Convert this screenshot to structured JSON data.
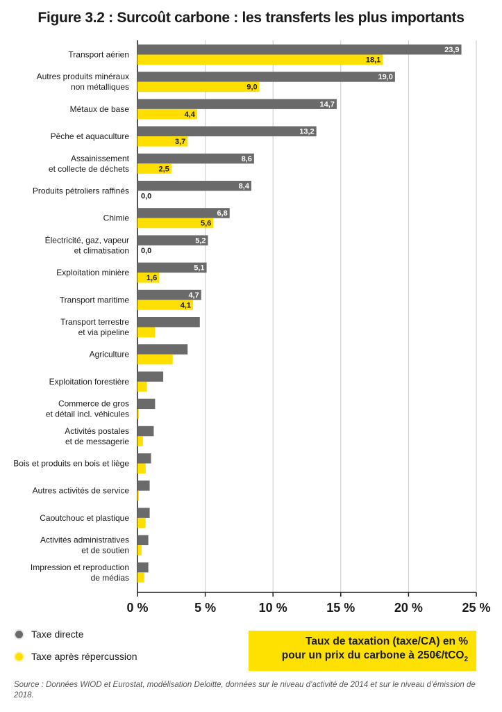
{
  "title": "Figure 3.2 : Surcoût carbone : les transferts les plus importants",
  "colors": {
    "direct": "#6a6a6a",
    "after": "#ffdf00",
    "grid": "#c8c8c8",
    "axis": "#1a1a1a"
  },
  "legend": {
    "direct": {
      "label": "Taxe directe",
      "icon": "dot-gray-icon"
    },
    "after": {
      "label": "Taxe après répercussion",
      "icon": "dot-yellow-icon"
    }
  },
  "axis_box": {
    "line1": "Taux de taxation (taxe/CA) en %",
    "line2_main": "pour un prix du carbone à 250€/tCO",
    "line2_sub": "2"
  },
  "source": "Source : Données WIOD et Eurostat, modélisation Deloitte, données sur le niveau d’activité de 2014 et sur le niveau d’émission de 2018.",
  "chart_data": {
    "type": "bar",
    "orientation": "horizontal",
    "xlim": [
      0,
      25
    ],
    "xticks": [
      "0 %",
      "5 %",
      "10 %",
      "15 %",
      "20 %",
      "25 %"
    ],
    "grid": true,
    "legend_position": "bottom-left",
    "categories": [
      [
        "Transport aérien"
      ],
      [
        "Autres produits minéraux",
        "non métalliques"
      ],
      [
        "Métaux de base"
      ],
      [
        "Pêche et aquaculture"
      ],
      [
        "Assainissement",
        "et collecte de déchets"
      ],
      [
        "Produits pétroliers raffinés"
      ],
      [
        "Chimie"
      ],
      [
        "Électricité, gaz, vapeur",
        "et climatisation"
      ],
      [
        "Exploitation minière"
      ],
      [
        "Transport maritime"
      ],
      [
        "Transport terrestre",
        "et via pipeline"
      ],
      [
        "Agriculture"
      ],
      [
        "Exploitation forestière"
      ],
      [
        "Commerce de gros",
        "et détail incl. véhicules"
      ],
      [
        "Activités postales",
        "et de messagerie"
      ],
      [
        "Bois et produits en bois et liège"
      ],
      [
        "Autres activités de service"
      ],
      [
        "Caoutchouc et plastique"
      ],
      [
        "Activités administratives",
        "et de soutien"
      ],
      [
        "Impression et reproduction",
        "de médias"
      ]
    ],
    "series": [
      {
        "name": "Taxe directe",
        "values": [
          23.9,
          19.0,
          14.7,
          13.2,
          8.6,
          8.4,
          6.8,
          5.2,
          5.1,
          4.7,
          4.6,
          3.7,
          1.9,
          1.3,
          1.2,
          1.0,
          0.9,
          0.9,
          0.8,
          0.8
        ],
        "labels": [
          "23,9",
          "19,0",
          "14,7",
          "13,2",
          "8,6",
          "8,4",
          "6,8",
          "5,2",
          "5,1",
          "4,7",
          "",
          "",
          "",
          "",
          "",
          "",
          "",
          "",
          "",
          ""
        ]
      },
      {
        "name": "Taxe après répercussion",
        "values": [
          18.1,
          9.0,
          4.4,
          3.7,
          2.5,
          0.0,
          5.6,
          0.0,
          1.6,
          4.1,
          1.3,
          2.6,
          0.7,
          0.1,
          0.4,
          0.6,
          0.1,
          0.6,
          0.3,
          0.5
        ],
        "labels": [
          "18,1",
          "9,0",
          "4,4",
          "3,7",
          "2,5",
          "0,0",
          "5,6",
          "0,0",
          "1,6",
          "4,1",
          "",
          "",
          "",
          "",
          "",
          "",
          "",
          "",
          "",
          ""
        ]
      }
    ]
  }
}
